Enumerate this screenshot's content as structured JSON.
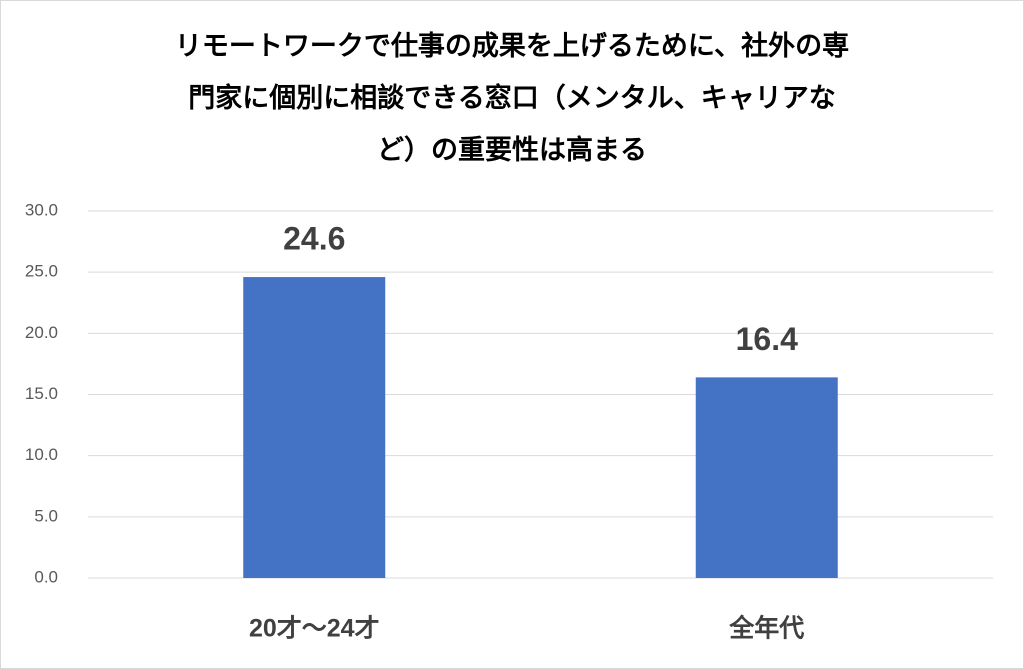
{
  "chart_data": {
    "type": "bar",
    "title": [
      "リモートワークで仕事の成果を上げるために、社外の専",
      "門家に個別に相談できる窓口（メンタル、キャリアな",
      "ど）の重要性は高まる"
    ],
    "categories": [
      "20才～24才",
      "全年代"
    ],
    "values": [
      24.6,
      16.4
    ],
    "color": "#4472c4",
    "ylim": [
      0,
      30
    ],
    "yticks": [
      {
        "value": 0,
        "label": "0.0"
      },
      {
        "value": 5,
        "label": "5.0"
      },
      {
        "value": 10,
        "label": "10.0"
      },
      {
        "value": 15,
        "label": "15.0"
      },
      {
        "value": 20,
        "label": "20.0"
      },
      {
        "value": 25,
        "label": "25.0"
      },
      {
        "value": 30,
        "label": "30.0"
      }
    ],
    "grid": true
  }
}
